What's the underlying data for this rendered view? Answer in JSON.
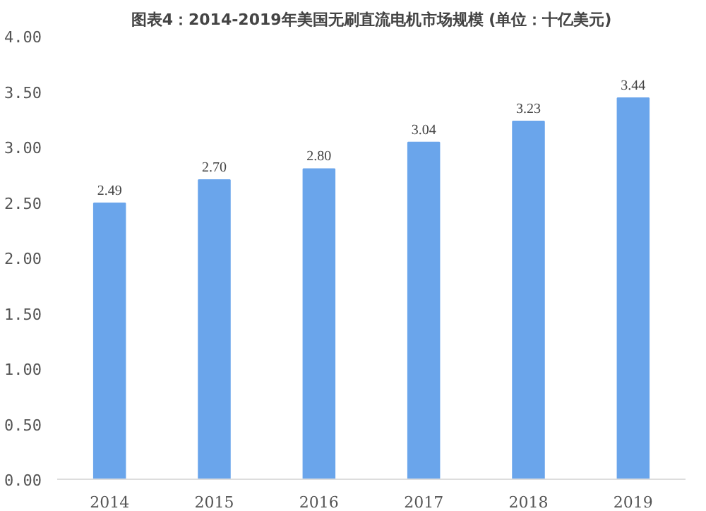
{
  "chart_data": {
    "type": "bar",
    "title": "图表4：2014-2019年美国无刷直流电机市场规模 (单位：十亿美元)",
    "categories": [
      "2014",
      "2015",
      "2016",
      "2017",
      "2018",
      "2019"
    ],
    "values": [
      2.49,
      2.7,
      2.8,
      3.04,
      3.23,
      3.44
    ],
    "color": "#6aa5eb",
    "ylim": [
      0,
      4
    ],
    "yticks": [
      {
        "value": 0,
        "label": "0.00"
      },
      {
        "value": 0.5,
        "label": "0.50"
      },
      {
        "value": 1,
        "label": "1.00"
      },
      {
        "value": 1.5,
        "label": "1.50"
      },
      {
        "value": 2,
        "label": "2.00"
      },
      {
        "value": 2.5,
        "label": "2.50"
      },
      {
        "value": 3,
        "label": "3.00"
      },
      {
        "value": 3.5,
        "label": "3.50"
      },
      {
        "value": 4,
        "label": "4.00"
      }
    ],
    "value_labels": [
      "2.49",
      "2.70",
      "2.80",
      "3.04",
      "3.23",
      "3.44"
    ],
    "grid": false
  }
}
